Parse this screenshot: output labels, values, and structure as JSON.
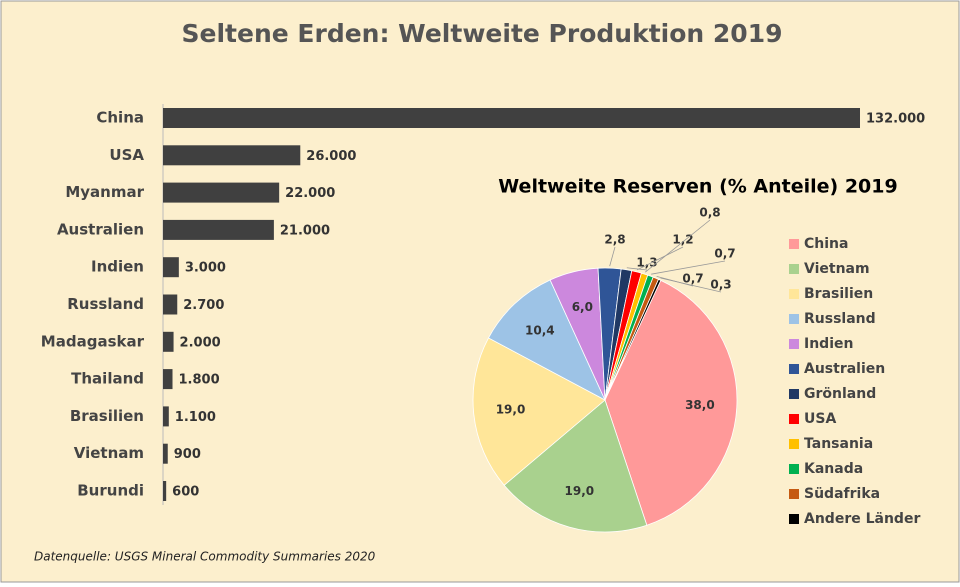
{
  "source": "Datenquelle: USGS Mineral Commodity Summaries 2020",
  "chart_data": [
    {
      "type": "bar",
      "title": "Seltene Erden: Weltweite Produktion 2019",
      "categories": [
        "China",
        "USA",
        "Myanmar",
        "Australien",
        "Indien",
        "Russland",
        "Madagaskar",
        "Thailand",
        "Brasilien",
        "Vietnam",
        "Burundi"
      ],
      "values": [
        132000,
        26000,
        22000,
        21000,
        3000,
        2700,
        2000,
        1800,
        1100,
        900,
        600
      ],
      "value_labels": [
        "132.000",
        "26.000",
        "22.000",
        "21.000",
        "3.000",
        "2.700",
        "2.000",
        "1.800",
        "1.100",
        "900",
        "600"
      ],
      "color": "#404040"
    },
    {
      "type": "pie",
      "title": "Weltweite Reserven (% Anteile)  2019",
      "categories": [
        "China",
        "Vietnam",
        "Brasilien",
        "Russland",
        "Indien",
        "Australien",
        "Grönland",
        "USA",
        "Tansania",
        "Kanada",
        "Südafrika",
        "Andere Länder"
      ],
      "values": [
        38.0,
        19.0,
        19.0,
        10.4,
        6.0,
        2.8,
        1.3,
        1.2,
        0.8,
        0.7,
        0.7,
        0.3
      ],
      "value_labels": [
        "38,0",
        "19,0",
        "19,0",
        "10,4",
        "6,0",
        "2,8",
        "1,3",
        "1,2",
        "0,8",
        "0,7",
        "0,7",
        "0,3"
      ],
      "colors": [
        "#ff9999",
        "#a9d18e",
        "#ffe699",
        "#9dc3e6",
        "#cc88dd",
        "#2f5597",
        "#203864",
        "#ff0000",
        "#ffc000",
        "#00b050",
        "#c55a11",
        "#000000"
      ],
      "legend": "right"
    }
  ]
}
